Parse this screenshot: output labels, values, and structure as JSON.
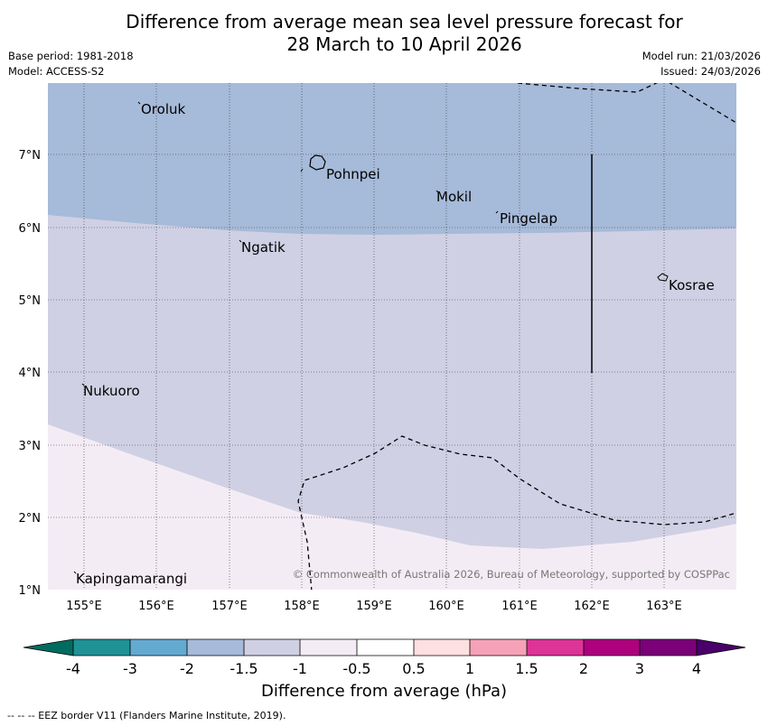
{
  "header": {
    "title_line1": "Difference from average mean sea level pressure forecast for",
    "title_line2": "28 March to 10 April 2026",
    "base_period": "Base period: 1981-2018",
    "model": "Model: ACCESS-S2",
    "model_run": "Model run: 21/03/2026",
    "issued": "Issued: 24/03/2026"
  },
  "map": {
    "lat_labels": [
      "7°N",
      "6°N",
      "5°N",
      "4°N",
      "3°N",
      "2°N",
      "1°N"
    ],
    "lon_labels": [
      "155°E",
      "156°E",
      "157°E",
      "158°E",
      "159°E",
      "160°E",
      "161°E",
      "162°E",
      "163°E"
    ],
    "places": {
      "oroluk": "Oroluk",
      "pohnpei": "Pohnpei",
      "mokil": "Mokil",
      "pingelap": "Pingelap",
      "ngatik": "Ngatik",
      "kosrae": "Kosrae",
      "nukuoro": "Nukuoro",
      "kapingamarangi": "Kapingamarangi"
    },
    "copyright": "© Commonwealth of Australia 2026, Bureau of Meteorology, supported by COSPPac",
    "colors": {
      "band_neg2_neg1_5": "#a6bad9",
      "band_neg1_5_neg1": "#d0d0e4",
      "band_neg1_neg0_5": "#f4ecf5"
    }
  },
  "colorbar": {
    "ticks": [
      "-4",
      "-3",
      "-2",
      "-1.5",
      "-1",
      "-0.5",
      "0.5",
      "1",
      "1.5",
      "2",
      "3",
      "4"
    ],
    "colors": [
      "#006c5f",
      "#1f9296",
      "#64a9d0",
      "#a6bad9",
      "#d0d0e4",
      "#f4ecf5",
      "#ffffff",
      "#fde0e1",
      "#f5a2b8",
      "#dd3497",
      "#ae017e",
      "#7a0177",
      "#49006a"
    ],
    "label": "Difference from average (hPa)"
  },
  "footer": {
    "eez_note": "--  --  -- EEZ border V11 (Flanders Marine Institute, 2019)."
  }
}
